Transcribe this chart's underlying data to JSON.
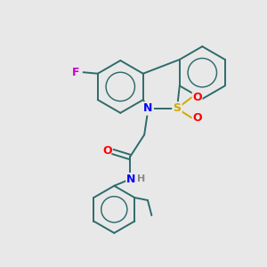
{
  "bg_color": "#e8e8e8",
  "bond_color": "#2d6b6b",
  "atom_colors": {
    "F": "#cc00cc",
    "N": "#0000ff",
    "S": "#ccaa00",
    "O": "#ff0000",
    "H": "#888888"
  },
  "figsize": [
    3.0,
    3.0
  ],
  "dpi": 100
}
